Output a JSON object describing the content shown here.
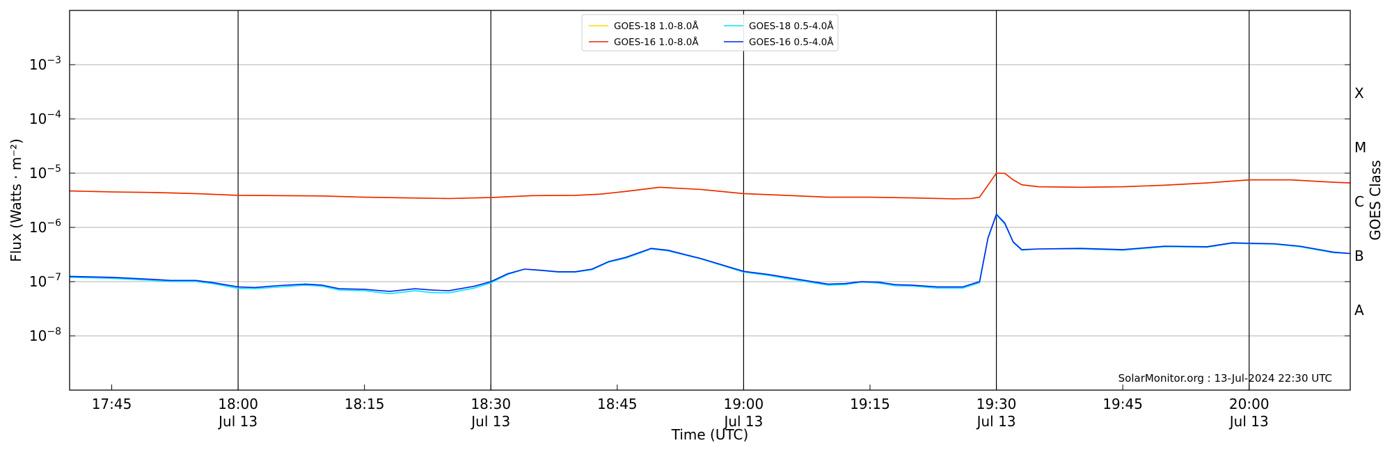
{
  "chart_data": {
    "type": "line",
    "xlabel": "Time (UTC)",
    "ylabel_left": "Flux (Watts · m⁻²)",
    "ylabel_right": "GOES Class",
    "y_scale": "log",
    "ylim": [
      1e-09,
      0.01
    ],
    "y_ticks": [
      {
        "value": 1e-08,
        "label": "10",
        "exp": "−8"
      },
      {
        "value": 1e-07,
        "label": "10",
        "exp": "−7"
      },
      {
        "value": 1e-06,
        "label": "10",
        "exp": "−6"
      },
      {
        "value": 1e-05,
        "label": "10",
        "exp": "−5"
      },
      {
        "value": 0.0001,
        "label": "10",
        "exp": "−4"
      },
      {
        "value": 0.001,
        "label": "10",
        "exp": "−3"
      }
    ],
    "x_range": [
      "17:40",
      "20:12"
    ],
    "x_ticks": [
      {
        "time": "17:45",
        "label": "17:45",
        "sub": ""
      },
      {
        "time": "18:00",
        "label": "18:00",
        "sub": "Jul 13"
      },
      {
        "time": "18:15",
        "label": "18:15",
        "sub": ""
      },
      {
        "time": "18:30",
        "label": "18:30",
        "sub": "Jul 13"
      },
      {
        "time": "18:45",
        "label": "18:45",
        "sub": ""
      },
      {
        "time": "19:00",
        "label": "19:00",
        "sub": "Jul 13"
      },
      {
        "time": "19:15",
        "label": "19:15",
        "sub": ""
      },
      {
        "time": "19:30",
        "label": "19:30",
        "sub": "Jul 13"
      },
      {
        "time": "19:45",
        "label": "19:45",
        "sub": ""
      },
      {
        "time": "20:00",
        "label": "20:00",
        "sub": "Jul 13"
      }
    ],
    "hour_lines": [
      "18:00",
      "18:30",
      "19:00",
      "19:30",
      "20:00"
    ],
    "goes_classes": [
      {
        "label": "A",
        "value": 3e-08
      },
      {
        "label": "B",
        "value": 3e-07
      },
      {
        "label": "C",
        "value": 3e-06
      },
      {
        "label": "M",
        "value": 3e-05
      },
      {
        "label": "X",
        "value": 0.0003
      }
    ],
    "grid": "horizontal",
    "legend_position": "top-center",
    "watermark": "SolarMonitor.org : 13-Jul-2024 22:30 UTC",
    "series": [
      {
        "name": "GOES-18 1.0-8.0Å",
        "color": "#ffd700",
        "points": [
          [
            "17:40",
            4.7e-06
          ],
          [
            "17:45",
            4.5e-06
          ],
          [
            "17:50",
            4.4e-06
          ],
          [
            "17:55",
            4.2e-06
          ],
          [
            "18:00",
            3.9e-06
          ],
          [
            "18:05",
            3.85e-06
          ],
          [
            "18:10",
            3.8e-06
          ],
          [
            "18:15",
            3.6e-06
          ],
          [
            "18:20",
            3.5e-06
          ],
          [
            "18:25",
            3.4e-06
          ],
          [
            "18:30",
            3.55e-06
          ],
          [
            "18:35",
            3.85e-06
          ],
          [
            "18:40",
            3.9e-06
          ],
          [
            "18:43",
            4.1e-06
          ],
          [
            "18:46",
            4.6e-06
          ],
          [
            "18:50",
            5.5e-06
          ],
          [
            "18:55",
            5e-06
          ],
          [
            "19:00",
            4.2e-06
          ],
          [
            "19:05",
            3.9e-06
          ],
          [
            "19:10",
            3.6e-06
          ],
          [
            "19:15",
            3.6e-06
          ],
          [
            "19:20",
            3.5e-06
          ],
          [
            "19:25",
            3.35e-06
          ],
          [
            "19:27",
            3.4e-06
          ],
          [
            "19:28",
            3.6e-06
          ],
          [
            "19:29",
            6e-06
          ],
          [
            "19:30",
            1e-05
          ],
          [
            "19:31",
            9.9e-06
          ],
          [
            "19:32",
            7.5e-06
          ],
          [
            "19:33",
            6.1e-06
          ],
          [
            "19:35",
            5.6e-06
          ],
          [
            "19:40",
            5.5e-06
          ],
          [
            "19:45",
            5.6e-06
          ],
          [
            "19:50",
            6e-06
          ],
          [
            "19:55",
            6.6e-06
          ],
          [
            "20:00",
            7.5e-06
          ],
          [
            "20:05",
            7.5e-06
          ],
          [
            "20:10",
            6.8e-06
          ],
          [
            "20:12",
            6.6e-06
          ]
        ]
      },
      {
        "name": "GOES-16 1.0-8.0Å",
        "color": "#ee2200",
        "points": [
          [
            "17:40",
            4.7e-06
          ],
          [
            "17:45",
            4.5e-06
          ],
          [
            "17:50",
            4.4e-06
          ],
          [
            "17:55",
            4.2e-06
          ],
          [
            "18:00",
            3.9e-06
          ],
          [
            "18:05",
            3.85e-06
          ],
          [
            "18:10",
            3.8e-06
          ],
          [
            "18:15",
            3.6e-06
          ],
          [
            "18:20",
            3.5e-06
          ],
          [
            "18:25",
            3.4e-06
          ],
          [
            "18:30",
            3.55e-06
          ],
          [
            "18:35",
            3.85e-06
          ],
          [
            "18:40",
            3.9e-06
          ],
          [
            "18:43",
            4.1e-06
          ],
          [
            "18:46",
            4.6e-06
          ],
          [
            "18:50",
            5.5e-06
          ],
          [
            "18:55",
            5e-06
          ],
          [
            "19:00",
            4.2e-06
          ],
          [
            "19:05",
            3.9e-06
          ],
          [
            "19:10",
            3.6e-06
          ],
          [
            "19:15",
            3.6e-06
          ],
          [
            "19:20",
            3.5e-06
          ],
          [
            "19:25",
            3.35e-06
          ],
          [
            "19:27",
            3.4e-06
          ],
          [
            "19:28",
            3.6e-06
          ],
          [
            "19:29",
            6e-06
          ],
          [
            "19:30",
            1e-05
          ],
          [
            "19:31",
            9.9e-06
          ],
          [
            "19:32",
            7.5e-06
          ],
          [
            "19:33",
            6.1e-06
          ],
          [
            "19:35",
            5.6e-06
          ],
          [
            "19:40",
            5.5e-06
          ],
          [
            "19:45",
            5.6e-06
          ],
          [
            "19:50",
            6e-06
          ],
          [
            "19:55",
            6.6e-06
          ],
          [
            "20:00",
            7.5e-06
          ],
          [
            "20:05",
            7.5e-06
          ],
          [
            "20:10",
            6.8e-06
          ],
          [
            "20:12",
            6.6e-06
          ]
        ]
      },
      {
        "name": "GOES-18 0.5-4.0Å",
        "color": "#00e5ff",
        "points": [
          [
            "17:40",
            1.2e-07
          ],
          [
            "17:45",
            1.15e-07
          ],
          [
            "17:50",
            1.05e-07
          ],
          [
            "17:52",
            1e-07
          ],
          [
            "17:55",
            1e-07
          ],
          [
            "17:57",
            9.2e-08
          ],
          [
            "18:00",
            7.5e-08
          ],
          [
            "18:02",
            7.4e-08
          ],
          [
            "18:05",
            8e-08
          ],
          [
            "18:08",
            8.6e-08
          ],
          [
            "18:10",
            8.2e-08
          ],
          [
            "18:12",
            7e-08
          ],
          [
            "18:15",
            6.8e-08
          ],
          [
            "18:18",
            6e-08
          ],
          [
            "18:21",
            6.8e-08
          ],
          [
            "18:23",
            6.3e-08
          ],
          [
            "18:25",
            6.2e-08
          ],
          [
            "18:28",
            7.6e-08
          ],
          [
            "18:30",
            9.5e-08
          ],
          [
            "18:32",
            1.35e-07
          ],
          [
            "18:34",
            1.7e-07
          ],
          [
            "18:36",
            1.6e-07
          ],
          [
            "18:38",
            1.5e-07
          ],
          [
            "18:40",
            1.5e-07
          ],
          [
            "18:42",
            1.65e-07
          ],
          [
            "18:44",
            2.3e-07
          ],
          [
            "18:46",
            2.7e-07
          ],
          [
            "18:48",
            3.5e-07
          ],
          [
            "18:49",
            4e-07
          ],
          [
            "18:51",
            3.7e-07
          ],
          [
            "18:55",
            2.6e-07
          ],
          [
            "19:00",
            1.5e-07
          ],
          [
            "19:03",
            1.3e-07
          ],
          [
            "19:05",
            1.15e-07
          ],
          [
            "19:10",
            8.6e-08
          ],
          [
            "19:12",
            8.8e-08
          ],
          [
            "19:14",
            9.8e-08
          ],
          [
            "19:16",
            9.4e-08
          ],
          [
            "19:18",
            8.4e-08
          ],
          [
            "19:20",
            8.3e-08
          ],
          [
            "19:23",
            7.6e-08
          ],
          [
            "19:26",
            7.6e-08
          ],
          [
            "19:28",
            9.5e-08
          ],
          [
            "19:29",
            6.2e-07
          ],
          [
            "19:30",
            1.7e-06
          ],
          [
            "19:31",
            1.15e-06
          ],
          [
            "19:32",
            5.3e-07
          ],
          [
            "19:33",
            3.8e-07
          ],
          [
            "19:35",
            4e-07
          ],
          [
            "19:40",
            4e-07
          ],
          [
            "19:45",
            3.8e-07
          ],
          [
            "19:50",
            4.4e-07
          ],
          [
            "19:55",
            4.3e-07
          ],
          [
            "19:58",
            5.1e-07
          ],
          [
            "20:00",
            5e-07
          ],
          [
            "20:03",
            4.9e-07
          ],
          [
            "20:06",
            4.4e-07
          ],
          [
            "20:10",
            3.4e-07
          ],
          [
            "20:12",
            3.3e-07
          ]
        ]
      },
      {
        "name": "GOES-16 0.5-4.0Å",
        "color": "#0022ee",
        "points": [
          [
            "17:40",
            1.25e-07
          ],
          [
            "17:45",
            1.2e-07
          ],
          [
            "17:50",
            1.1e-07
          ],
          [
            "17:52",
            1.05e-07
          ],
          [
            "17:55",
            1.05e-07
          ],
          [
            "17:57",
            9.6e-08
          ],
          [
            "18:00",
            8e-08
          ],
          [
            "18:02",
            7.8e-08
          ],
          [
            "18:05",
            8.5e-08
          ],
          [
            "18:08",
            9e-08
          ],
          [
            "18:10",
            8.6e-08
          ],
          [
            "18:12",
            7.4e-08
          ],
          [
            "18:15",
            7.2e-08
          ],
          [
            "18:18",
            6.6e-08
          ],
          [
            "18:21",
            7.4e-08
          ],
          [
            "18:23",
            7e-08
          ],
          [
            "18:25",
            6.8e-08
          ],
          [
            "18:28",
            8.2e-08
          ],
          [
            "18:30",
            1e-07
          ],
          [
            "18:32",
            1.4e-07
          ],
          [
            "18:34",
            1.7e-07
          ],
          [
            "18:36",
            1.62e-07
          ],
          [
            "18:38",
            1.52e-07
          ],
          [
            "18:40",
            1.52e-07
          ],
          [
            "18:42",
            1.7e-07
          ],
          [
            "18:44",
            2.35e-07
          ],
          [
            "18:46",
            2.8e-07
          ],
          [
            "18:48",
            3.6e-07
          ],
          [
            "18:49",
            4.1e-07
          ],
          [
            "18:51",
            3.8e-07
          ],
          [
            "18:55",
            2.65e-07
          ],
          [
            "19:00",
            1.55e-07
          ],
          [
            "19:03",
            1.35e-07
          ],
          [
            "19:05",
            1.2e-07
          ],
          [
            "19:10",
            9e-08
          ],
          [
            "19:12",
            9.2e-08
          ],
          [
            "19:14",
            1e-07
          ],
          [
            "19:16",
            9.8e-08
          ],
          [
            "19:18",
            8.8e-08
          ],
          [
            "19:20",
            8.6e-08
          ],
          [
            "19:23",
            8e-08
          ],
          [
            "19:26",
            8e-08
          ],
          [
            "19:28",
            1e-07
          ],
          [
            "19:29",
            6.4e-07
          ],
          [
            "19:30",
            1.75e-06
          ],
          [
            "19:31",
            1.2e-06
          ],
          [
            "19:32",
            5.4e-07
          ],
          [
            "19:33",
            3.9e-07
          ],
          [
            "19:35",
            4e-07
          ],
          [
            "19:40",
            4.1e-07
          ],
          [
            "19:45",
            3.9e-07
          ],
          [
            "19:50",
            4.5e-07
          ],
          [
            "19:55",
            4.4e-07
          ],
          [
            "19:58",
            5.2e-07
          ],
          [
            "20:00",
            5.1e-07
          ],
          [
            "20:03",
            5e-07
          ],
          [
            "20:06",
            4.5e-07
          ],
          [
            "20:10",
            3.5e-07
          ],
          [
            "20:12",
            3.3e-07
          ]
        ]
      }
    ]
  }
}
